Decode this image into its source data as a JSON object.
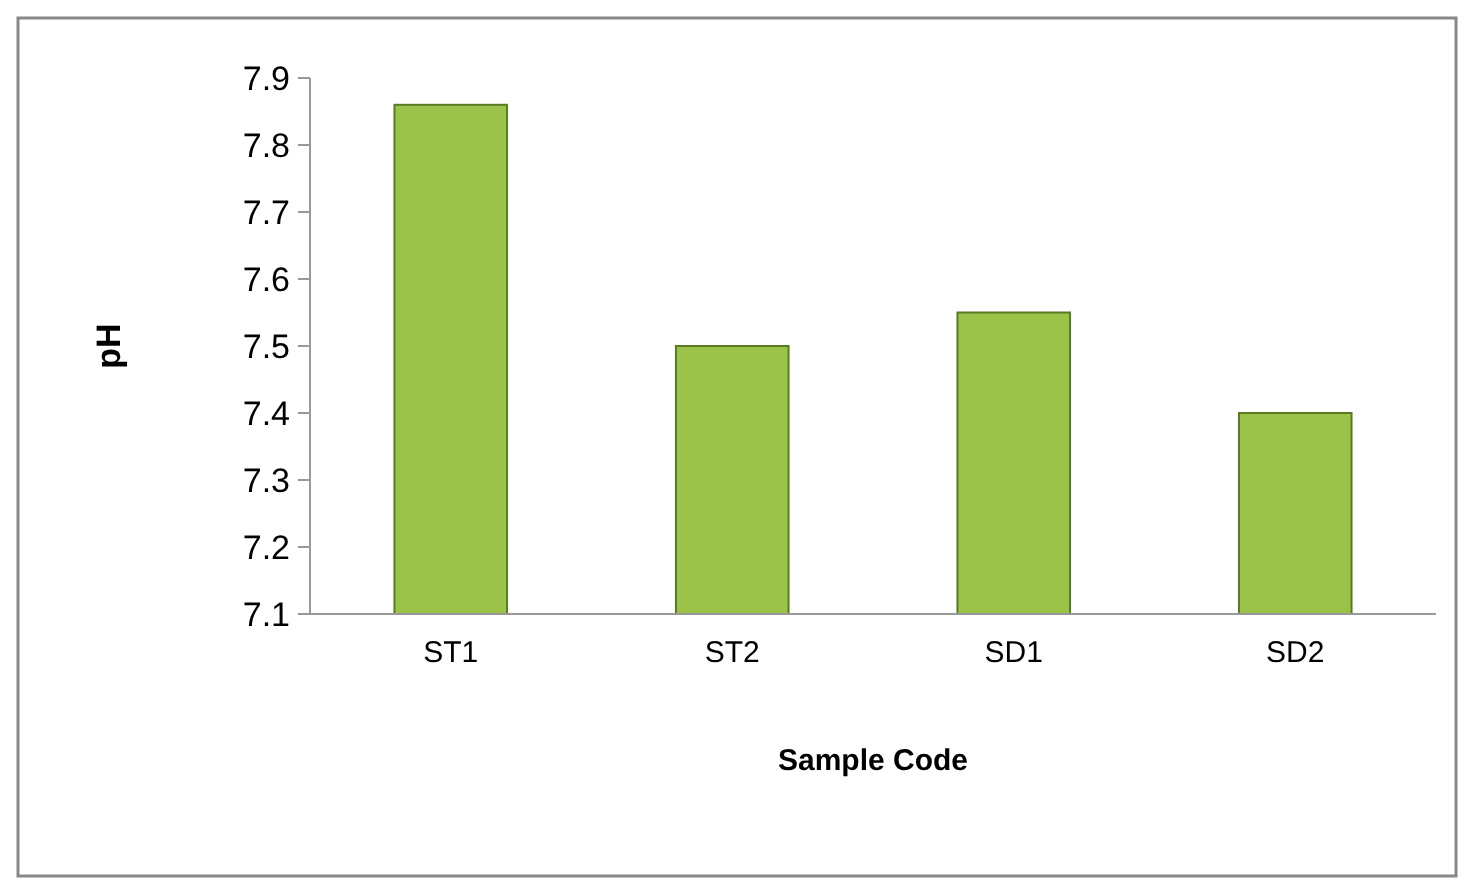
{
  "chart_data": {
    "type": "bar",
    "xlabel": "Sample Code",
    "ylabel": "pH",
    "categories": [
      "ST1",
      "ST2",
      "SD1",
      "SD2"
    ],
    "values": [
      7.86,
      7.5,
      7.55,
      7.4
    ],
    "color": "#9bc34a",
    "ylim": [
      7.1,
      7.9
    ],
    "yticks": [
      7.1,
      7.2,
      7.3,
      7.4,
      7.5,
      7.6,
      7.7,
      7.8,
      7.9
    ],
    "grid": false
  }
}
